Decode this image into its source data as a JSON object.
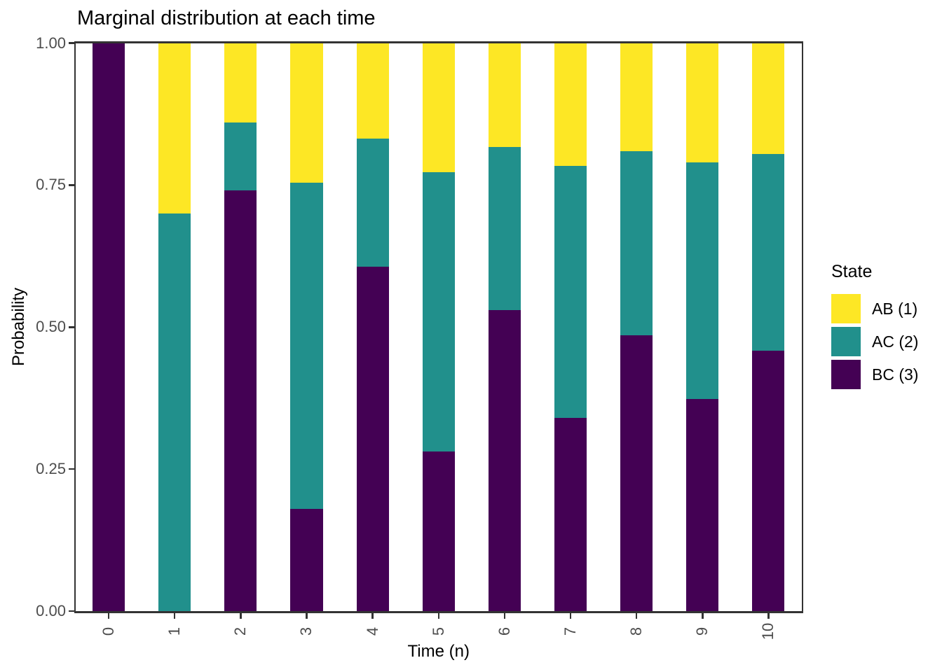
{
  "chart_data": {
    "type": "bar",
    "stacked": true,
    "title": "Marginal distribution at each time",
    "xlabel": "Time (n)",
    "ylabel": "Probability",
    "categories": [
      "0",
      "1",
      "2",
      "3",
      "4",
      "5",
      "6",
      "7",
      "8",
      "9",
      "10"
    ],
    "series": [
      {
        "name": "AB (1)",
        "color": "#FDE725",
        "values": [
          0,
          0.3,
          0.14,
          0.246,
          0.1688,
          0.2269,
          0.1827,
          0.2165,
          0.1907,
          0.2104,
          0.1953
        ]
      },
      {
        "name": "AC (2)",
        "color": "#21908C",
        "values": [
          0,
          0.7,
          0.12,
          0.574,
          0.2244,
          0.4923,
          0.2873,
          0.4441,
          0.3242,
          0.4159,
          0.3458
        ]
      },
      {
        "name": "BC (3)",
        "color": "#440154",
        "values": [
          1,
          0,
          0.74,
          0.18,
          0.6068,
          0.2808,
          0.53,
          0.3395,
          0.4851,
          0.3738,
          0.4589
        ]
      }
    ],
    "stack_order_bottom_to_top": [
      "BC (3)",
      "AC (2)",
      "AB (1)"
    ],
    "y_ticks": [
      0.0,
      0.25,
      0.5,
      0.75,
      1.0
    ],
    "y_tick_labels": [
      "0.00",
      "0.25",
      "0.50",
      "0.75",
      "1.00"
    ],
    "ylim": [
      0,
      1
    ],
    "grid": false,
    "legend": {
      "title": "State",
      "position": "right"
    },
    "colors": {
      "panel_border": "#333333",
      "tick_text": "#4d4d4d",
      "title_text": "#000000",
      "background": "#ffffff"
    }
  }
}
